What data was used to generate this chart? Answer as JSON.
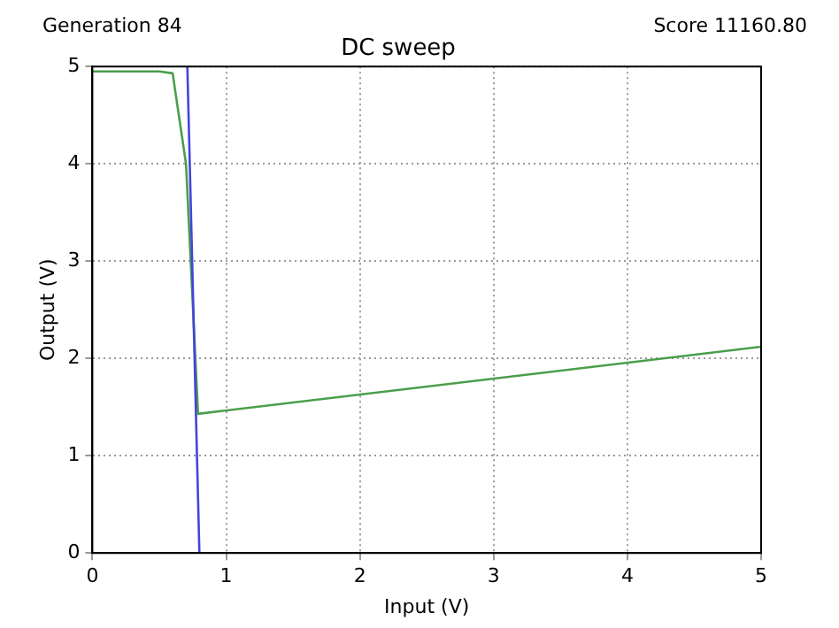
{
  "chart_data": {
    "type": "line",
    "title": "DC sweep",
    "xlabel": "Input (V)",
    "ylabel": "Output (V)",
    "annotations": [
      "Generation 84",
      "Score 11160.80"
    ],
    "series": [
      {
        "color": "#4444dd",
        "x": [
          0.71,
          0.8
        ],
        "values": [
          5,
          0
        ]
      },
      {
        "color": "#4a9e4a",
        "x": [
          0,
          0.5,
          0.6,
          0.7,
          0.79,
          5
        ],
        "values": [
          4.95,
          4.95,
          4.93,
          4.0,
          1.43,
          2.12
        ]
      }
    ],
    "xlim": [
      0,
      5
    ],
    "xticks": [
      0,
      1,
      2,
      3,
      4,
      5
    ],
    "ylim": [
      0,
      5
    ],
    "yticks": [
      0,
      1,
      2,
      3,
      4,
      5
    ],
    "grid": true,
    "legend": false,
    "marker": "none",
    "line_style": "solid"
  }
}
